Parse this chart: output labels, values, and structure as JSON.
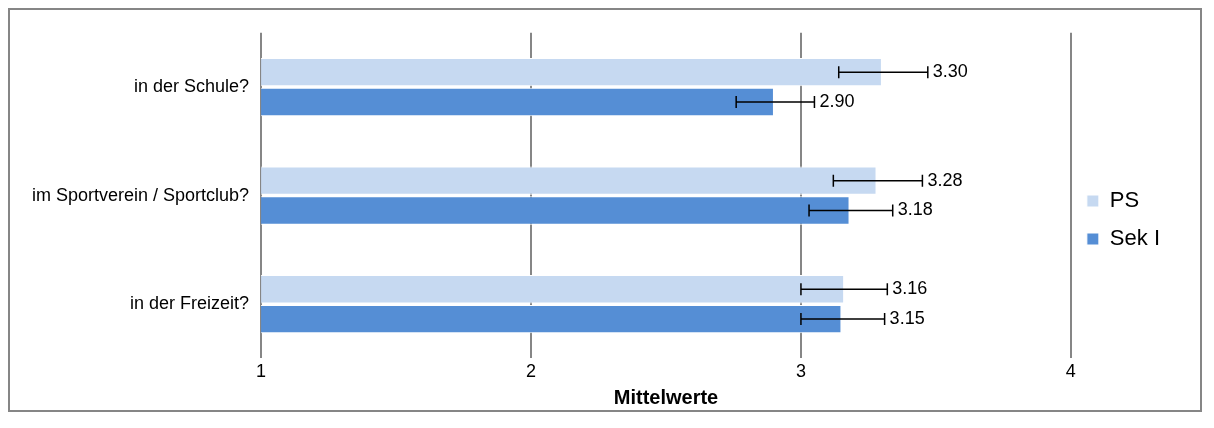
{
  "chart_data": {
    "type": "bar",
    "orientation": "horizontal",
    "categories": [
      "in der Schule?",
      "im Sportverein / Sportclub?",
      "in der Freizeit?"
    ],
    "series": [
      {
        "name": "PS",
        "color": "#c6d9f1",
        "values": [
          3.3,
          3.28,
          3.16
        ],
        "value_labels": [
          "3.30",
          "3.28",
          "3.16"
        ],
        "errors": [
          [
            3.14,
            3.47
          ],
          [
            3.12,
            3.45
          ],
          [
            3.0,
            3.32
          ]
        ]
      },
      {
        "name": "Sek I",
        "color": "#558ed5",
        "values": [
          2.9,
          3.18,
          3.15
        ],
        "value_labels": [
          "2.90",
          "3.18",
          "3.15"
        ],
        "errors": [
          [
            2.76,
            3.05
          ],
          [
            3.03,
            3.34
          ],
          [
            3.0,
            3.31
          ]
        ]
      }
    ],
    "xlabel": "Mittelwerte",
    "xlim": [
      1,
      4
    ],
    "xticks": [
      1,
      2,
      3,
      4
    ],
    "grid": "x",
    "legend": "right"
  }
}
